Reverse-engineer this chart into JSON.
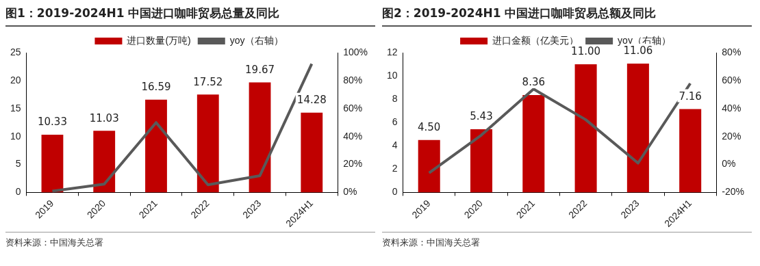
{
  "chart_data": [
    {
      "type": "bar",
      "title": "图1：2019-2024H1 中国进口咖啡贸易总量及同比",
      "categories": [
        "2019",
        "2020",
        "2021",
        "2022",
        "2023",
        "2024H1"
      ],
      "series": [
        {
          "name": "进口数量(万吨)",
          "color": "#c00000",
          "values": [
            10.33,
            11.03,
            16.59,
            17.52,
            19.67,
            14.28
          ],
          "value_labels": [
            "10.33",
            "11.03",
            "16.59",
            "17.52",
            "19.67",
            "14.28"
          ]
        },
        {
          "name": "yoy（右轴）",
          "type": "line",
          "axis": "y2",
          "color": "#595959",
          "values": [
            1,
            6,
            50,
            5.5,
            12,
            92
          ]
        }
      ],
      "ylim": [
        0,
        25
      ],
      "yticks": [
        0,
        5,
        10,
        15,
        20,
        25
      ],
      "y2lim": [
        0,
        100
      ],
      "y2ticks": [
        {
          "value": 0,
          "label": "0%"
        },
        {
          "value": 20,
          "label": "20%"
        },
        {
          "value": 40,
          "label": "40%"
        },
        {
          "value": 60,
          "label": "60%"
        },
        {
          "value": 80,
          "label": "80%"
        },
        {
          "value": 100,
          "label": "100%"
        }
      ],
      "grid": false,
      "legend": "top",
      "marker": "none",
      "line_style": "solid",
      "annotations": [
        "资料来源：中国海关总署"
      ]
    },
    {
      "type": "bar",
      "title": "图2：2019-2024H1 中国进口咖啡贸易总额及同比",
      "categories": [
        "2019",
        "2020",
        "2021",
        "2022",
        "2023",
        "2024H1"
      ],
      "series": [
        {
          "name": "进口金额（亿美元）",
          "color": "#c00000",
          "values": [
            4.5,
            5.43,
            8.36,
            11.0,
            11.06,
            7.16
          ],
          "value_labels": [
            "4.50",
            "5.43",
            "8.36",
            "11.00",
            "11.06",
            "7.16"
          ]
        },
        {
          "name": "yoy（右轴）",
          "type": "line",
          "axis": "y2",
          "color": "#595959",
          "values": [
            -6,
            21,
            54,
            32,
            1,
            58
          ]
        }
      ],
      "ylim": [
        0,
        12
      ],
      "yticks": [
        0,
        2,
        4,
        6,
        8,
        10,
        12
      ],
      "y2lim": [
        -20,
        80
      ],
      "y2ticks": [
        {
          "value": -20,
          "label": "-20%"
        },
        {
          "value": 0,
          "label": "0%"
        },
        {
          "value": 20,
          "label": "20%"
        },
        {
          "value": 40,
          "label": "40%"
        },
        {
          "value": 60,
          "label": "60%"
        },
        {
          "value": 80,
          "label": "80%"
        }
      ],
      "grid": false,
      "legend": "top",
      "marker": "none",
      "line_style": "solid",
      "annotations": [
        "资料来源：中国海关总署"
      ]
    }
  ]
}
